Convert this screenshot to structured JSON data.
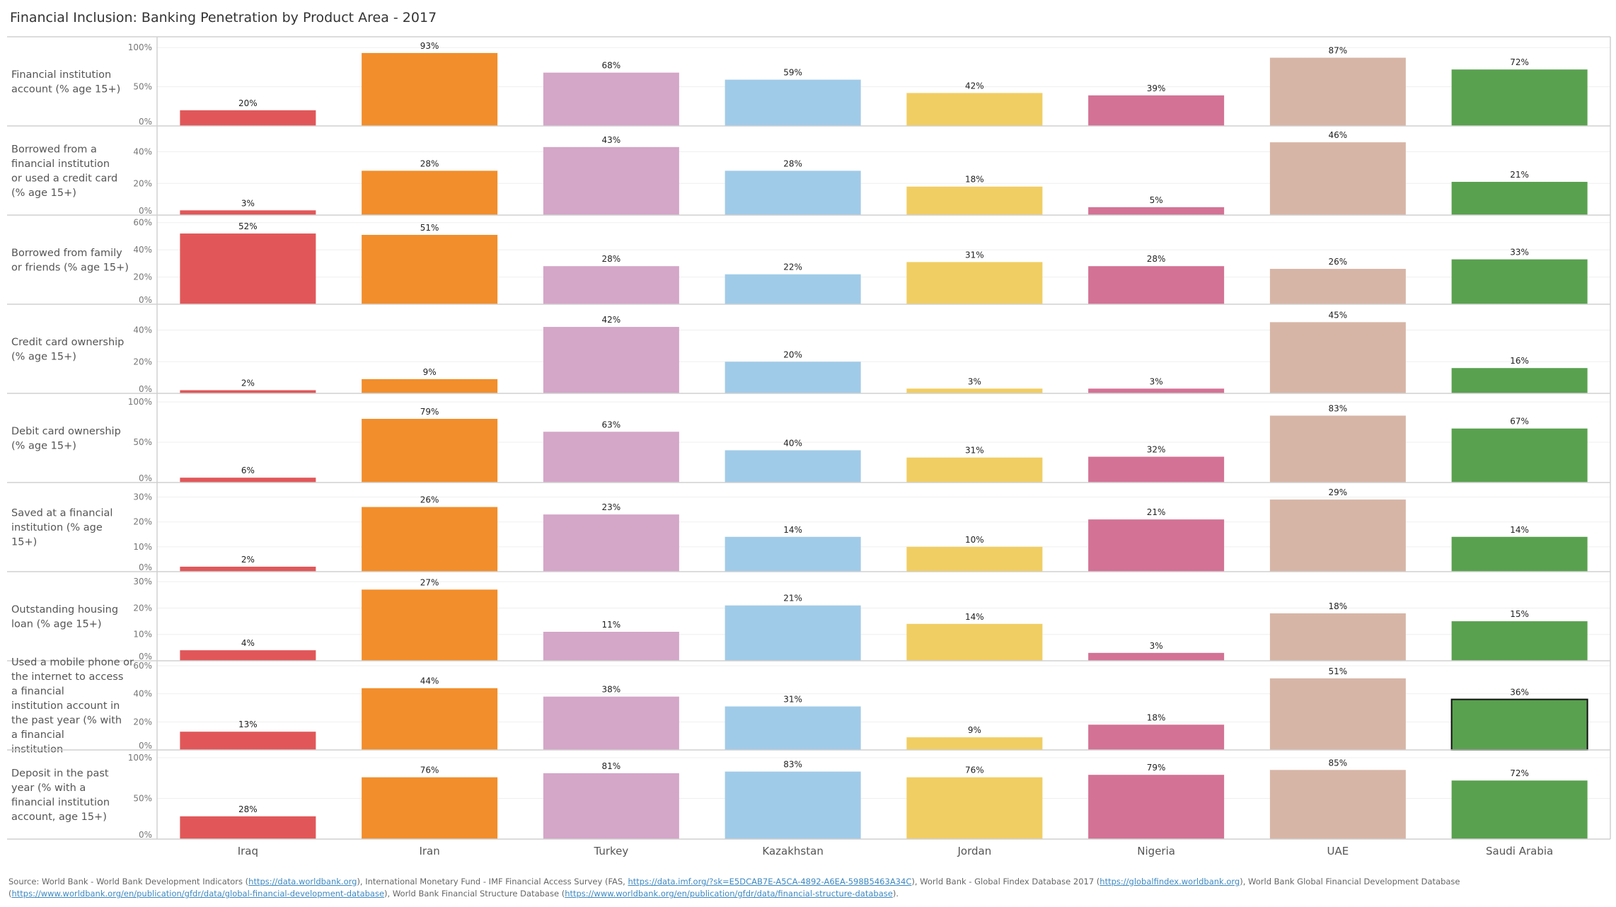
{
  "title": "Financial Inclusion: Banking Penetration by Product Area - 2017",
  "chart_data": {
    "type": "bar",
    "layout": "small-multiples (rows = indicators, columns = countries)",
    "categories": [
      "Iraq",
      "Iran",
      "Turkey",
      "Kazakhstan",
      "Jordan",
      "Nigeria",
      "UAE",
      "Saudi Arabia"
    ],
    "colors": [
      "#e15759",
      "#f28e2b",
      "#d4a6c8",
      "#a0cbe8",
      "#f1ce63",
      "#d37295",
      "#d7b5a6",
      "#59a14f"
    ],
    "highlighted": {
      "row": "Used a mobile phone or the internet to access a financial institution account in the past year (% with a financial institution",
      "category": "Saudi Arabia"
    },
    "grid": true,
    "rows": [
      {
        "label": "Financial institution account (% age 15+)",
        "ylim": [
          0,
          111
        ],
        "ticks": [
          0,
          50,
          100
        ],
        "values": [
          20,
          93,
          68,
          59,
          42,
          39,
          87,
          72
        ]
      },
      {
        "label": "Borrowed from a financial institution or used a credit card (% age 15+)",
        "ylim": [
          0,
          55
        ],
        "ticks": [
          0,
          20,
          40
        ],
        "values": [
          3,
          28,
          43,
          28,
          18,
          5,
          46,
          21
        ]
      },
      {
        "label": "Borrowed from family or friends (% age 15+)",
        "ylim": [
          0,
          64
        ],
        "ticks": [
          0,
          20,
          40,
          60
        ],
        "values": [
          52,
          51,
          28,
          22,
          31,
          28,
          26,
          33
        ]
      },
      {
        "label": "Credit card ownership (% age 15+)",
        "ylim": [
          0,
          55
        ],
        "ticks": [
          0,
          20,
          40
        ],
        "values": [
          2,
          9,
          42,
          20,
          3,
          3,
          45,
          16
        ]
      },
      {
        "label": "Debit card ownership (% age 15+)",
        "ylim": [
          0,
          108
        ],
        "ticks": [
          0,
          50,
          100
        ],
        "values": [
          6,
          79,
          63,
          40,
          31,
          32,
          83,
          67
        ]
      },
      {
        "label": "Saved at a financial institution (% age 15+)",
        "ylim": [
          0,
          35
        ],
        "ticks": [
          0,
          10,
          20,
          30
        ],
        "values": [
          2,
          26,
          23,
          14,
          10,
          21,
          29,
          14
        ]
      },
      {
        "label": "Outstanding housing loan (% age 15+)",
        "ylim": [
          0,
          33
        ],
        "ticks": [
          0,
          10,
          20,
          30
        ],
        "values": [
          4,
          27,
          11,
          21,
          14,
          3,
          18,
          15
        ]
      },
      {
        "label": "Used a mobile phone or the internet to access a financial institution account in the past year (% with a financial institution",
        "ylim": [
          0,
          62
        ],
        "ticks": [
          0,
          20,
          40,
          60
        ],
        "values": [
          13,
          44,
          38,
          31,
          9,
          18,
          51,
          36
        ]
      },
      {
        "label": "Deposit in the past year (% with a financial institution account, age 15+)",
        "ylim": [
          0,
          107
        ],
        "ticks": [
          0,
          50,
          100
        ],
        "values": [
          28,
          76,
          81,
          83,
          76,
          79,
          85,
          72
        ]
      }
    ]
  },
  "source": [
    {
      "text": "Source: World Bank - World Bank Development Indicators ("
    },
    {
      "link": "https://data.worldbank.org"
    },
    {
      "text": "), International Monetary Fund - IMF Financial Access Survey (FAS, "
    },
    {
      "link": "https://data.imf.org/?sk=E5DCAB7E-A5CA-4892-A6EA-598B5463A34C"
    },
    {
      "text": "), World Bank - Global Findex Database 2017 ("
    },
    {
      "link": "https://globalfindex.worldbank.org"
    },
    {
      "text": "), World Bank Global Financial Development Database ("
    },
    {
      "link": "https://www.worldbank.org/en/publication/gfdr/data/global-financial-development-database"
    },
    {
      "text": "), World Bank Financial Structure Database ("
    },
    {
      "link": "https://www.worldbank.org/en/publication/gfdr/data/financial-structure-database"
    },
    {
      "text": ")."
    }
  ]
}
